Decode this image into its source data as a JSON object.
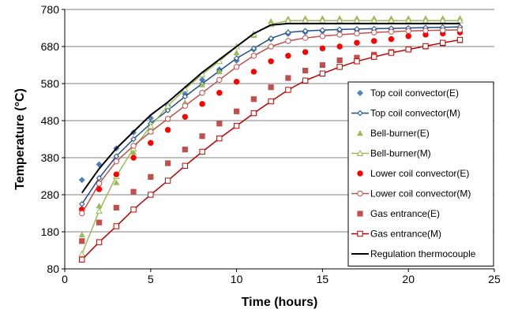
{
  "chart_data": {
    "type": "line",
    "xlabel": "Time (hours)",
    "ylabel": "Temperature (°C)",
    "xlim": [
      0,
      25
    ],
    "ylim": [
      80,
      780
    ],
    "xticks": [
      0,
      5,
      10,
      15,
      20,
      25
    ],
    "yticks": [
      80,
      180,
      280,
      380,
      480,
      580,
      680,
      780
    ],
    "grid": "horizontal",
    "legend_position": "right",
    "series": [
      {
        "name": "Top coil convector(E)",
        "kind": "markers",
        "marker": "diamond",
        "color": "#4F81BD",
        "x": [
          1,
          2,
          3,
          4,
          5,
          6,
          7,
          8,
          9,
          10,
          11,
          12,
          13,
          14,
          15,
          16,
          17,
          18,
          19,
          20,
          21,
          22,
          23
        ],
        "y": [
          320,
          362,
          405,
          448,
          487,
          520,
          552,
          590,
          618,
          642,
          672,
          700,
          714,
          718,
          721,
          722,
          724,
          726,
          727,
          728,
          729,
          730,
          732
        ]
      },
      {
        "name": "Top coil convector(M)",
        "kind": "line",
        "marker": "diamond-open",
        "color": "#1F4E8C",
        "x": [
          1,
          2,
          3,
          4,
          5,
          6,
          7,
          8,
          9,
          10,
          11,
          12,
          13,
          14,
          15,
          16,
          17,
          18,
          19,
          20,
          21,
          22,
          23
        ],
        "y": [
          255,
          325,
          384,
          430,
          472,
          508,
          545,
          580,
          614,
          648,
          675,
          702,
          718,
          722,
          724,
          726,
          727,
          728,
          729,
          730,
          731,
          732,
          733
        ]
      },
      {
        "name": "Bell-burner(E)",
        "kind": "markers",
        "marker": "triangle",
        "color": "#9BBB59",
        "x": [
          1,
          2,
          3,
          4,
          5,
          6,
          7,
          8,
          9,
          10,
          11,
          12,
          13,
          14,
          15,
          16,
          17,
          18,
          19,
          20,
          21,
          22,
          23
        ],
        "y": [
          172,
          250,
          313,
          395,
          450,
          484,
          529,
          577,
          612,
          663,
          710,
          748,
          755,
          756,
          756,
          756,
          756,
          756,
          756,
          756,
          756,
          756,
          756
        ]
      },
      {
        "name": "Bell-burner(M)",
        "kind": "line",
        "marker": "triangle-open",
        "color": "#9BBB59",
        "x": [
          1,
          2,
          3,
          4,
          5,
          6,
          7,
          8,
          9,
          10,
          11,
          12,
          13,
          14,
          15,
          16,
          17,
          18,
          19,
          20,
          21,
          22,
          23
        ],
        "y": [
          120,
          236,
          330,
          405,
          465,
          520,
          565,
          605,
          640,
          680,
          714,
          740,
          750,
          750,
          750,
          750,
          750,
          750,
          750,
          750,
          750,
          750,
          750
        ]
      },
      {
        "name": "Lower coil convector(E)",
        "kind": "markers",
        "marker": "circle",
        "color": "#FF0000",
        "x": [
          1,
          2,
          3,
          4,
          5,
          6,
          7,
          8,
          9,
          10,
          11,
          12,
          13,
          14,
          15,
          16,
          17,
          18,
          19,
          20,
          21,
          22,
          23
        ],
        "y": [
          240,
          295,
          335,
          380,
          420,
          455,
          490,
          525,
          555,
          585,
          612,
          640,
          655,
          665,
          675,
          680,
          690,
          695,
          700,
          708,
          712,
          715,
          718
        ]
      },
      {
        "name": "Lower coil convector(M)",
        "kind": "line",
        "marker": "circle-open",
        "color": "#C0504D",
        "x": [
          1,
          2,
          3,
          4,
          5,
          6,
          7,
          8,
          9,
          10,
          11,
          12,
          13,
          14,
          15,
          16,
          17,
          18,
          19,
          20,
          21,
          22,
          23
        ],
        "y": [
          230,
          310,
          370,
          412,
          450,
          485,
          520,
          555,
          590,
          625,
          655,
          680,
          695,
          703,
          708,
          712,
          715,
          718,
          720,
          722,
          723,
          724,
          725
        ]
      },
      {
        "name": "Gas entrance(E)",
        "kind": "markers",
        "marker": "square",
        "color": "#C0504D",
        "x": [
          1,
          2,
          3,
          4,
          5,
          6,
          7,
          8,
          9,
          10,
          11,
          12,
          13,
          14,
          15,
          16,
          17,
          18,
          19,
          20,
          21,
          22,
          23
        ],
        "y": [
          155,
          205,
          245,
          288,
          328,
          365,
          402,
          438,
          472,
          505,
          538,
          570,
          595,
          615,
          630,
          643,
          650,
          658,
          665,
          672,
          680,
          688,
          697
        ]
      },
      {
        "name": "Gas entrance(M)",
        "kind": "line",
        "marker": "square-open",
        "color": "#C00000",
        "x": [
          1,
          2,
          3,
          4,
          5,
          6,
          7,
          8,
          9,
          10,
          11,
          12,
          13,
          14,
          15,
          16,
          17,
          18,
          19,
          20,
          21,
          22,
          23
        ],
        "y": [
          105,
          152,
          195,
          240,
          280,
          318,
          358,
          396,
          432,
          466,
          500,
          532,
          563,
          588,
          607,
          625,
          640,
          652,
          663,
          672,
          681,
          690,
          698
        ]
      },
      {
        "name": "Regulation thermocouple",
        "kind": "line",
        "marker": "none",
        "color": "#000000",
        "x": [
          1,
          2,
          3,
          4,
          5,
          6,
          7,
          8,
          9,
          10,
          11,
          12,
          13,
          14,
          15,
          16,
          17,
          18,
          19,
          20,
          21,
          22,
          23
        ],
        "y": [
          285,
          350,
          405,
          450,
          495,
          530,
          570,
          610,
          645,
          680,
          715,
          738,
          742,
          742,
          742,
          742,
          742,
          742,
          742,
          742,
          742,
          742,
          742
        ]
      }
    ]
  }
}
